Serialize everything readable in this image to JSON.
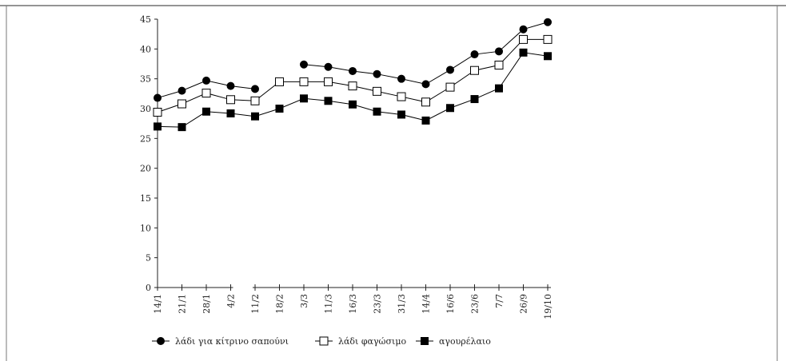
{
  "chart_data": {
    "type": "line",
    "title": "",
    "xlabel": "",
    "ylabel": "",
    "ylim": [
      0,
      45
    ],
    "yticks": [
      0,
      5,
      10,
      15,
      20,
      25,
      30,
      35,
      40,
      45
    ],
    "categories": [
      "14/1",
      "21/1",
      "28/1",
      "4/2",
      "11/2",
      "18/2",
      "3/3",
      "11/3",
      "16/3",
      "23/3",
      "31/3",
      "14/4",
      "16/6",
      "23/6",
      "7/7",
      "26/9",
      "19/10"
    ],
    "grid": false,
    "legend_position": "bottom",
    "series": [
      {
        "name": "λάδι για κίτρινο σαπούνι",
        "marker": "circle-filled",
        "values": [
          31.8,
          33.0,
          34.7,
          33.8,
          33.3,
          null,
          37.4,
          37.0,
          36.3,
          35.8,
          35.0,
          34.1,
          36.5,
          39.1,
          39.6,
          43.3,
          44.5
        ]
      },
      {
        "name": "λάδι φαγώσιμο",
        "marker": "square-open",
        "values": [
          29.4,
          30.8,
          32.6,
          31.5,
          31.3,
          34.5,
          34.5,
          34.5,
          33.8,
          32.9,
          32.0,
          31.1,
          33.6,
          36.4,
          37.3,
          41.6,
          41.6
        ]
      },
      {
        "name": "αγουρέλαιο",
        "marker": "square-filled",
        "values": [
          27.0,
          26.9,
          29.5,
          29.2,
          28.7,
          30.0,
          31.7,
          31.3,
          30.7,
          29.5,
          29.0,
          28.0,
          30.1,
          31.6,
          33.4,
          39.4,
          38.8
        ]
      }
    ]
  }
}
